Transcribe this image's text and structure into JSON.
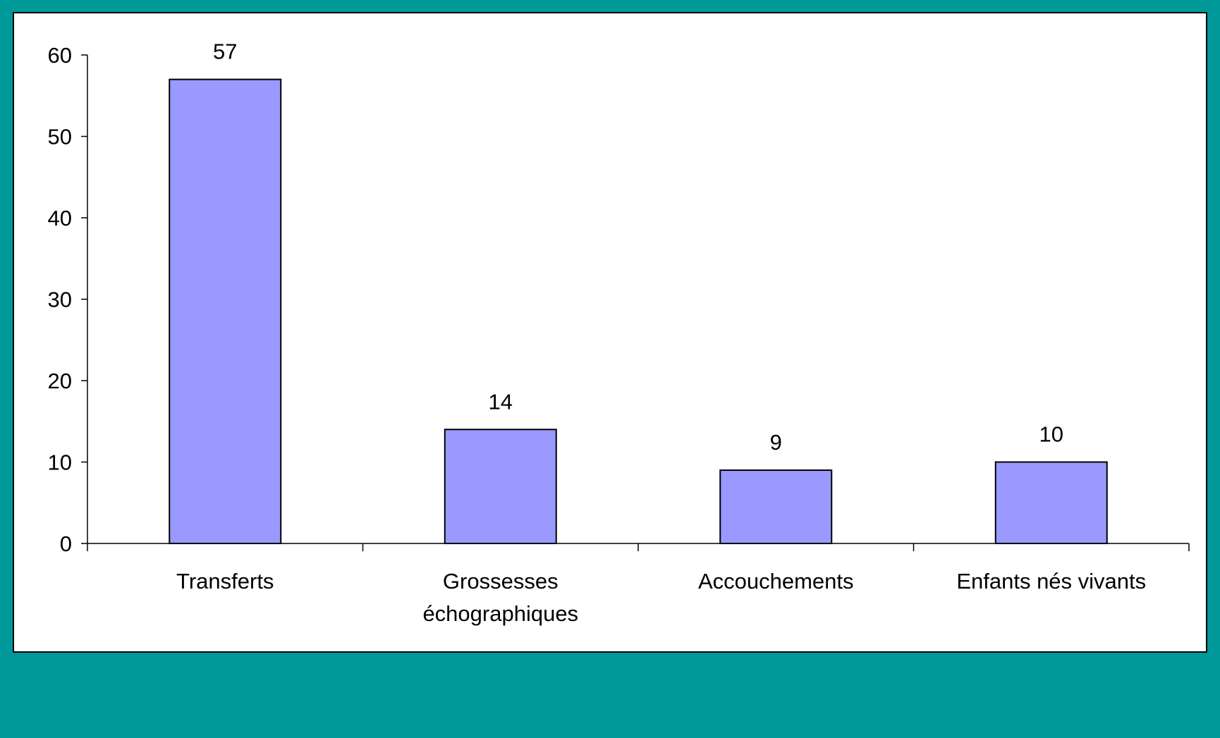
{
  "colors": {
    "background": "#009999",
    "plot_background": "#ffffff",
    "bar_fill": "#9999ff",
    "bar_stroke": "#000000"
  },
  "chart_data": {
    "type": "bar",
    "title": "",
    "xlabel": "",
    "ylabel": "",
    "categories": [
      [
        "Transferts"
      ],
      [
        "Grossesses",
        "échographiques"
      ],
      [
        "Accouchements"
      ],
      [
        "Enfants nés vivants"
      ]
    ],
    "values": [
      57,
      14,
      9,
      10
    ],
    "data_labels": [
      "57",
      "14",
      "9",
      "10"
    ],
    "ylim": [
      0,
      60
    ],
    "yticks": [
      0,
      10,
      20,
      30,
      40,
      50,
      60
    ],
    "grid": false,
    "legend": "none"
  }
}
